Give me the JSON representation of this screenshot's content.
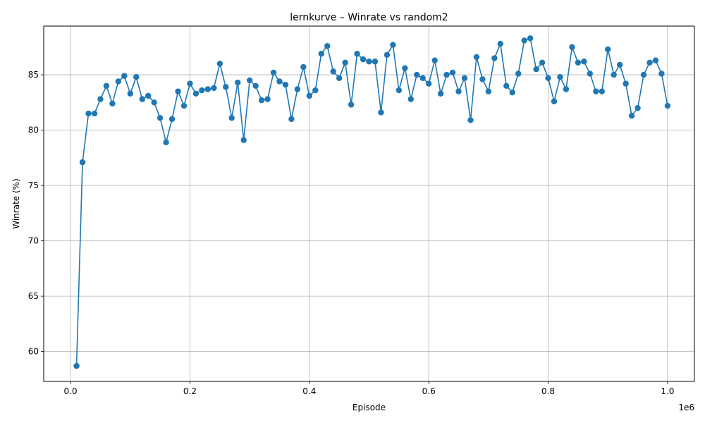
{
  "chart_data": {
    "type": "line",
    "title": "lernkurve – Winrate vs random2",
    "xlabel": "Episode",
    "ylabel": "Winrate (%)",
    "x_offset_label": "1e6",
    "xlim": [
      -45000,
      1045000
    ],
    "ylim": [
      57.3,
      89.4
    ],
    "x_ticks": [
      0,
      200000,
      400000,
      600000,
      800000,
      1000000
    ],
    "x_tick_labels": [
      "0.0",
      "0.2",
      "0.4",
      "0.6",
      "0.8",
      "1.0"
    ],
    "y_ticks": [
      60,
      65,
      70,
      75,
      80,
      85
    ],
    "y_tick_labels": [
      "60",
      "65",
      "70",
      "75",
      "80",
      "85"
    ],
    "grid": true,
    "colors": {
      "line": "#1f77b4",
      "grid": "#b0b0b0"
    },
    "series": [
      {
        "x": [
          10000,
          20000,
          30000,
          40000,
          50000,
          60000,
          70000,
          80000,
          90000,
          100000,
          110000,
          120000,
          130000,
          140000,
          150000,
          160000,
          170000,
          180000,
          190000,
          200000,
          210000,
          220000,
          230000,
          240000,
          250000,
          260000,
          270000,
          280000,
          290000,
          300000,
          310000,
          320000,
          330000,
          340000,
          350000,
          360000,
          370000,
          380000,
          390000,
          400000,
          410000,
          420000,
          430000,
          440000,
          450000,
          460000,
          470000,
          480000,
          490000,
          500000,
          510000,
          520000,
          530000,
          540000,
          550000,
          560000,
          570000,
          580000,
          590000,
          600000,
          610000,
          620000,
          630000,
          640000,
          650000,
          660000,
          670000,
          680000,
          690000,
          700000,
          710000,
          720000,
          730000,
          740000,
          750000,
          760000,
          770000,
          780000,
          790000,
          800000,
          810000,
          820000,
          830000,
          840000,
          850000,
          860000,
          870000,
          880000,
          890000,
          900000,
          910000,
          920000,
          930000,
          940000,
          950000,
          960000,
          970000,
          980000,
          990000,
          1000000
        ],
        "y": [
          58.7,
          77.1,
          81.5,
          81.5,
          82.8,
          84.0,
          82.4,
          84.4,
          84.9,
          83.3,
          84.8,
          82.8,
          83.1,
          82.5,
          81.1,
          78.9,
          81.0,
          83.5,
          82.2,
          84.2,
          83.3,
          83.6,
          83.7,
          83.8,
          86.0,
          83.9,
          81.1,
          84.3,
          79.1,
          84.5,
          84.0,
          82.7,
          82.8,
          85.2,
          84.4,
          84.1,
          81.0,
          83.7,
          85.7,
          83.1,
          83.6,
          86.9,
          87.6,
          85.3,
          84.7,
          86.1,
          82.3,
          86.9,
          86.4,
          86.2,
          86.2,
          81.6,
          86.8,
          87.7,
          83.6,
          85.6,
          82.8,
          85.0,
          84.7,
          84.2,
          86.3,
          83.3,
          85.0,
          85.2,
          83.5,
          84.7,
          80.9,
          86.6,
          84.6,
          83.5,
          86.5,
          87.8,
          84.0,
          83.4,
          85.1,
          88.1,
          88.3,
          85.5,
          86.1,
          84.7,
          82.6,
          84.8,
          83.7,
          87.5,
          86.1,
          86.2,
          85.1,
          83.5,
          83.5,
          87.3,
          85.0,
          85.9,
          84.2,
          81.3,
          82.0,
          85.0,
          86.1,
          86.3,
          85.1,
          82.2
        ]
      }
    ]
  }
}
